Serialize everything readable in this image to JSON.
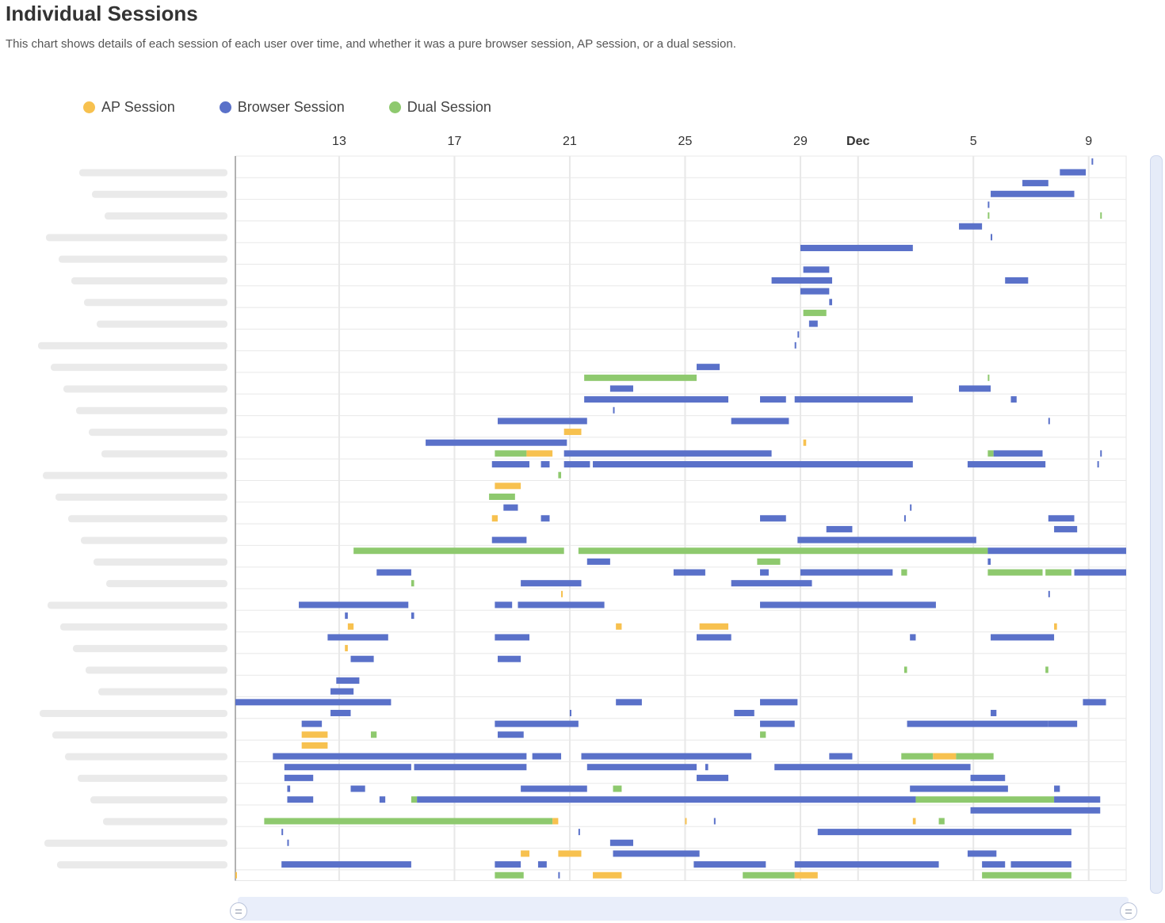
{
  "header": {
    "title": "Individual Sessions",
    "subtitle": "This chart shows details of each session of each user over time, and whether it was a pure browser session, AP session, or a dual session."
  },
  "colors": {
    "ap": "#f7c14f",
    "browser": "#5a71c9",
    "dual": "#8ec96e",
    "grid": "#e8e8e8"
  },
  "chart_data": {
    "type": "gantt",
    "legend": [
      {
        "key": "ap",
        "label": "AP Session"
      },
      {
        "key": "browser",
        "label": "Browser Session"
      },
      {
        "key": "dual",
        "label": "Dual Session"
      }
    ],
    "x_ticks": [
      {
        "day": 13,
        "label": "13",
        "bold": false
      },
      {
        "day": 17,
        "label": "17",
        "bold": false
      },
      {
        "day": 21,
        "label": "21",
        "bold": false
      },
      {
        "day": 25,
        "label": "25",
        "bold": false
      },
      {
        "day": 29,
        "label": "29",
        "bold": false
      },
      {
        "day": 31,
        "label": "Dec",
        "bold": true
      },
      {
        "day": 35,
        "label": "5",
        "bold": false
      },
      {
        "day": 39,
        "label": "9",
        "bold": false
      }
    ],
    "xlim": [
      9.4,
      40.3
    ],
    "rows": [
      [
        {
          "t": "browser",
          "s": 39.1,
          "e": 39.15
        }
      ],
      [
        {
          "t": "browser",
          "s": 38.0,
          "e": 38.9
        }
      ],
      [
        {
          "t": "browser",
          "s": 36.7,
          "e": 37.6
        }
      ],
      [
        {
          "t": "browser",
          "s": 35.6,
          "e": 38.5
        }
      ],
      [
        {
          "t": "browser",
          "s": 35.5,
          "e": 35.55
        }
      ],
      [
        {
          "t": "dual",
          "s": 35.5,
          "e": 35.55
        },
        {
          "t": "dual",
          "s": 39.4,
          "e": 39.45
        }
      ],
      [
        {
          "t": "browser",
          "s": 34.5,
          "e": 35.3
        }
      ],
      [
        {
          "t": "browser",
          "s": 35.6,
          "e": 35.65
        }
      ],
      [
        {
          "t": "browser",
          "s": 29.0,
          "e": 32.9
        }
      ],
      [],
      [
        {
          "t": "browser",
          "s": 29.1,
          "e": 30.0
        }
      ],
      [
        {
          "t": "browser",
          "s": 28.0,
          "e": 30.1
        },
        {
          "t": "browser",
          "s": 36.1,
          "e": 36.9
        }
      ],
      [
        {
          "t": "browser",
          "s": 29.0,
          "e": 30.0
        }
      ],
      [
        {
          "t": "browser",
          "s": 30.0,
          "e": 30.1
        }
      ],
      [
        {
          "t": "dual",
          "s": 29.1,
          "e": 29.9
        }
      ],
      [
        {
          "t": "browser",
          "s": 29.3,
          "e": 29.6
        }
      ],
      [
        {
          "t": "browser",
          "s": 28.9,
          "e": 28.95
        }
      ],
      [
        {
          "t": "browser",
          "s": 28.8,
          "e": 28.85
        }
      ],
      [],
      [
        {
          "t": "browser",
          "s": 25.4,
          "e": 26.2
        }
      ],
      [
        {
          "t": "dual",
          "s": 21.5,
          "e": 25.4
        },
        {
          "t": "dual",
          "s": 35.5,
          "e": 35.55
        }
      ],
      [
        {
          "t": "browser",
          "s": 22.4,
          "e": 23.2
        },
        {
          "t": "browser",
          "s": 34.5,
          "e": 35.6
        }
      ],
      [
        {
          "t": "browser",
          "s": 21.5,
          "e": 26.5
        },
        {
          "t": "browser",
          "s": 27.6,
          "e": 28.5
        },
        {
          "t": "browser",
          "s": 28.8,
          "e": 32.9
        },
        {
          "t": "browser",
          "s": 36.3,
          "e": 36.5
        }
      ],
      [
        {
          "t": "browser",
          "s": 22.5,
          "e": 22.55
        }
      ],
      [
        {
          "t": "browser",
          "s": 18.5,
          "e": 21.6
        },
        {
          "t": "browser",
          "s": 26.6,
          "e": 28.6
        },
        {
          "t": "browser",
          "s": 37.6,
          "e": 37.65
        }
      ],
      [
        {
          "t": "ap",
          "s": 20.8,
          "e": 21.4
        }
      ],
      [
        {
          "t": "browser",
          "s": 16.0,
          "e": 20.9
        },
        {
          "t": "ap",
          "s": 29.1,
          "e": 29.2
        }
      ],
      [
        {
          "t": "dual",
          "s": 18.4,
          "e": 19.5
        },
        {
          "t": "ap",
          "s": 19.5,
          "e": 20.4
        },
        {
          "t": "browser",
          "s": 20.8,
          "e": 28.0
        },
        {
          "t": "dual",
          "s": 35.5,
          "e": 35.7
        },
        {
          "t": "browser",
          "s": 35.7,
          "e": 37.4
        },
        {
          "t": "browser",
          "s": 39.4,
          "e": 39.45
        }
      ],
      [
        {
          "t": "browser",
          "s": 18.3,
          "e": 19.6
        },
        {
          "t": "browser",
          "s": 20.0,
          "e": 20.3
        },
        {
          "t": "browser",
          "s": 20.8,
          "e": 21.7
        },
        {
          "t": "browser",
          "s": 21.8,
          "e": 32.9
        },
        {
          "t": "browser",
          "s": 34.8,
          "e": 37.5
        },
        {
          "t": "browser",
          "s": 39.3,
          "e": 39.35
        }
      ],
      [
        {
          "t": "dual",
          "s": 20.6,
          "e": 20.7
        }
      ],
      [
        {
          "t": "ap",
          "s": 18.4,
          "e": 19.3
        }
      ],
      [
        {
          "t": "dual",
          "s": 18.2,
          "e": 19.1
        }
      ],
      [
        {
          "t": "browser",
          "s": 18.7,
          "e": 19.2
        },
        {
          "t": "browser",
          "s": 32.8,
          "e": 32.85
        }
      ],
      [
        {
          "t": "ap",
          "s": 18.3,
          "e": 18.5
        },
        {
          "t": "browser",
          "s": 20.0,
          "e": 20.3
        },
        {
          "t": "browser",
          "s": 27.6,
          "e": 28.5
        },
        {
          "t": "browser",
          "s": 32.6,
          "e": 32.65
        },
        {
          "t": "browser",
          "s": 37.6,
          "e": 38.5
        }
      ],
      [
        {
          "t": "browser",
          "s": 29.9,
          "e": 30.8
        },
        {
          "t": "browser",
          "s": 37.8,
          "e": 38.6
        }
      ],
      [
        {
          "t": "browser",
          "s": 18.3,
          "e": 19.5
        },
        {
          "t": "browser",
          "s": 28.9,
          "e": 35.1
        }
      ],
      [
        {
          "t": "dual",
          "s": 13.5,
          "e": 20.8
        },
        {
          "t": "dual",
          "s": 21.3,
          "e": 35.5
        },
        {
          "t": "browser",
          "s": 35.5,
          "e": 41.3
        }
      ],
      [
        {
          "t": "browser",
          "s": 21.6,
          "e": 22.4
        },
        {
          "t": "dual",
          "s": 27.5,
          "e": 28.3
        },
        {
          "t": "browser",
          "s": 35.5,
          "e": 35.6
        }
      ],
      [
        {
          "t": "browser",
          "s": 14.3,
          "e": 15.5
        },
        {
          "t": "browser",
          "s": 24.6,
          "e": 25.7
        },
        {
          "t": "browser",
          "s": 27.6,
          "e": 27.9
        },
        {
          "t": "browser",
          "s": 29.0,
          "e": 32.2
        },
        {
          "t": "dual",
          "s": 32.5,
          "e": 32.7
        },
        {
          "t": "dual",
          "s": 35.5,
          "e": 37.4
        },
        {
          "t": "dual",
          "s": 37.5,
          "e": 38.4
        },
        {
          "t": "browser",
          "s": 38.5,
          "e": 41.4
        }
      ],
      [
        {
          "t": "dual",
          "s": 15.5,
          "e": 15.6
        },
        {
          "t": "browser",
          "s": 19.3,
          "e": 21.4
        },
        {
          "t": "browser",
          "s": 26.6,
          "e": 29.4
        }
      ],
      [
        {
          "t": "ap",
          "s": 20.7,
          "e": 20.75
        },
        {
          "t": "browser",
          "s": 37.6,
          "e": 37.65
        }
      ],
      [
        {
          "t": "browser",
          "s": 11.6,
          "e": 15.4
        },
        {
          "t": "browser",
          "s": 18.4,
          "e": 19.0
        },
        {
          "t": "browser",
          "s": 19.2,
          "e": 22.2
        },
        {
          "t": "browser",
          "s": 27.6,
          "e": 33.7
        }
      ],
      [
        {
          "t": "browser",
          "s": 13.2,
          "e": 13.3
        },
        {
          "t": "browser",
          "s": 15.5,
          "e": 15.6
        }
      ],
      [
        {
          "t": "ap",
          "s": 13.3,
          "e": 13.5
        },
        {
          "t": "ap",
          "s": 22.6,
          "e": 22.8
        },
        {
          "t": "ap",
          "s": 25.5,
          "e": 26.5
        },
        {
          "t": "ap",
          "s": 37.8,
          "e": 37.9
        }
      ],
      [
        {
          "t": "browser",
          "s": 12.6,
          "e": 14.7
        },
        {
          "t": "browser",
          "s": 18.4,
          "e": 19.6
        },
        {
          "t": "browser",
          "s": 25.4,
          "e": 26.6
        },
        {
          "t": "browser",
          "s": 32.8,
          "e": 33.0
        },
        {
          "t": "browser",
          "s": 35.6,
          "e": 37.8
        }
      ],
      [
        {
          "t": "ap",
          "s": 13.2,
          "e": 13.3
        }
      ],
      [
        {
          "t": "browser",
          "s": 13.4,
          "e": 14.2
        },
        {
          "t": "browser",
          "s": 18.5,
          "e": 19.3
        }
      ],
      [
        {
          "t": "dual",
          "s": 32.6,
          "e": 32.7
        },
        {
          "t": "dual",
          "s": 37.5,
          "e": 37.6
        }
      ],
      [
        {
          "t": "browser",
          "s": 12.9,
          "e": 13.7
        }
      ],
      [
        {
          "t": "browser",
          "s": 12.7,
          "e": 13.5
        }
      ],
      [
        {
          "t": "browser",
          "s": 9.4,
          "e": 14.8
        },
        {
          "t": "browser",
          "s": 22.6,
          "e": 23.5
        },
        {
          "t": "browser",
          "s": 27.6,
          "e": 28.9
        },
        {
          "t": "browser",
          "s": 38.8,
          "e": 39.6
        }
      ],
      [
        {
          "t": "browser",
          "s": 12.7,
          "e": 13.4
        },
        {
          "t": "browser",
          "s": 21.0,
          "e": 21.05
        },
        {
          "t": "browser",
          "s": 26.7,
          "e": 27.4
        },
        {
          "t": "browser",
          "s": 35.6,
          "e": 35.8
        }
      ],
      [
        {
          "t": "browser",
          "s": 11.7,
          "e": 12.4
        },
        {
          "t": "browser",
          "s": 18.4,
          "e": 21.3
        },
        {
          "t": "browser",
          "s": 27.6,
          "e": 28.8
        },
        {
          "t": "browser",
          "s": 32.7,
          "e": 37.6
        },
        {
          "t": "browser",
          "s": 37.6,
          "e": 38.6
        }
      ],
      [
        {
          "t": "ap",
          "s": 11.7,
          "e": 12.6
        },
        {
          "t": "dual",
          "s": 14.1,
          "e": 14.3
        },
        {
          "t": "browser",
          "s": 18.5,
          "e": 19.4
        },
        {
          "t": "dual",
          "s": 27.6,
          "e": 27.8
        }
      ],
      [
        {
          "t": "ap",
          "s": 11.7,
          "e": 12.6
        }
      ],
      [
        {
          "t": "browser",
          "s": 10.7,
          "e": 19.5
        },
        {
          "t": "browser",
          "s": 19.7,
          "e": 20.7
        },
        {
          "t": "browser",
          "s": 21.4,
          "e": 27.3
        },
        {
          "t": "browser",
          "s": 30.0,
          "e": 30.8
        },
        {
          "t": "dual",
          "s": 32.5,
          "e": 33.6
        },
        {
          "t": "ap",
          "s": 33.6,
          "e": 34.4
        },
        {
          "t": "dual",
          "s": 34.4,
          "e": 35.7
        }
      ],
      [
        {
          "t": "browser",
          "s": 11.1,
          "e": 15.5
        },
        {
          "t": "browser",
          "s": 15.6,
          "e": 19.5
        },
        {
          "t": "browser",
          "s": 21.6,
          "e": 25.4
        },
        {
          "t": "browser",
          "s": 25.7,
          "e": 25.8
        },
        {
          "t": "browser",
          "s": 28.1,
          "e": 34.9
        }
      ],
      [
        {
          "t": "browser",
          "s": 11.1,
          "e": 12.1
        },
        {
          "t": "browser",
          "s": 25.4,
          "e": 26.5
        },
        {
          "t": "browser",
          "s": 34.9,
          "e": 36.1
        }
      ],
      [
        {
          "t": "browser",
          "s": 11.2,
          "e": 11.3
        },
        {
          "t": "browser",
          "s": 13.4,
          "e": 13.9
        },
        {
          "t": "browser",
          "s": 19.3,
          "e": 21.6
        },
        {
          "t": "dual",
          "s": 22.5,
          "e": 22.8
        },
        {
          "t": "browser",
          "s": 32.8,
          "e": 36.2
        },
        {
          "t": "browser",
          "s": 37.8,
          "e": 38.0
        }
      ],
      [
        {
          "t": "browser",
          "s": 11.2,
          "e": 12.1
        },
        {
          "t": "browser",
          "s": 14.4,
          "e": 14.6
        },
        {
          "t": "dual",
          "s": 15.5,
          "e": 15.7
        },
        {
          "t": "browser",
          "s": 15.7,
          "e": 33.0
        },
        {
          "t": "dual",
          "s": 33.0,
          "e": 37.8
        },
        {
          "t": "browser",
          "s": 37.8,
          "e": 39.4
        }
      ],
      [
        {
          "t": "browser",
          "s": 34.9,
          "e": 39.4
        }
      ],
      [
        {
          "t": "dual",
          "s": 10.4,
          "e": 20.4
        },
        {
          "t": "ap",
          "s": 20.4,
          "e": 20.6
        },
        {
          "t": "ap",
          "s": 25.0,
          "e": 25.05
        },
        {
          "t": "browser",
          "s": 26.0,
          "e": 26.05
        },
        {
          "t": "ap",
          "s": 32.9,
          "e": 33.0
        },
        {
          "t": "dual",
          "s": 33.8,
          "e": 34.0
        }
      ],
      [
        {
          "t": "browser",
          "s": 11.0,
          "e": 11.05
        },
        {
          "t": "browser",
          "s": 21.3,
          "e": 21.35
        },
        {
          "t": "browser",
          "s": 29.6,
          "e": 38.4
        }
      ],
      [
        {
          "t": "browser",
          "s": 11.2,
          "e": 11.25
        },
        {
          "t": "browser",
          "s": 22.4,
          "e": 23.2
        }
      ],
      [
        {
          "t": "ap",
          "s": 19.3,
          "e": 19.6
        },
        {
          "t": "ap",
          "s": 20.6,
          "e": 21.4
        },
        {
          "t": "browser",
          "s": 22.5,
          "e": 25.5
        },
        {
          "t": "browser",
          "s": 34.8,
          "e": 35.8
        }
      ],
      [
        {
          "t": "browser",
          "s": 11.0,
          "e": 15.5
        },
        {
          "t": "browser",
          "s": 18.4,
          "e": 19.3
        },
        {
          "t": "browser",
          "s": 19.9,
          "e": 20.2
        },
        {
          "t": "browser",
          "s": 25.3,
          "e": 27.8
        },
        {
          "t": "browser",
          "s": 28.8,
          "e": 33.8
        },
        {
          "t": "browser",
          "s": 35.3,
          "e": 36.1
        },
        {
          "t": "browser",
          "s": 36.3,
          "e": 38.4
        }
      ],
      [
        {
          "t": "ap",
          "s": 9.4,
          "e": 9.45
        },
        {
          "t": "dual",
          "s": 18.4,
          "e": 19.4
        },
        {
          "t": "browser",
          "s": 20.6,
          "e": 20.65
        },
        {
          "t": "ap",
          "s": 21.8,
          "e": 22.8
        },
        {
          "t": "dual",
          "s": 27.0,
          "e": 28.8
        },
        {
          "t": "ap",
          "s": 28.8,
          "e": 29.6
        },
        {
          "t": "dual",
          "s": 35.3,
          "e": 38.4
        }
      ]
    ]
  }
}
